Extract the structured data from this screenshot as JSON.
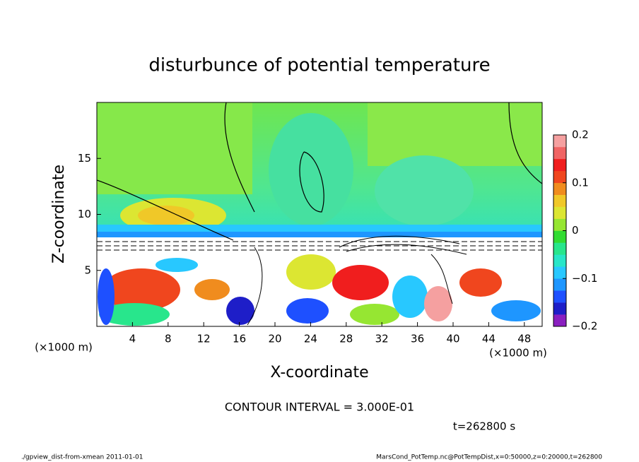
{
  "chart_data": {
    "type": "contour",
    "title": "disturbunce of potential temperature",
    "xlabel": "X-coordinate",
    "ylabel": "Z-coordinate",
    "x_unit": "(×1000 m)",
    "xlim": [
      0,
      50
    ],
    "ylim": [
      0,
      20
    ],
    "xticks": [
      4,
      8,
      12,
      16,
      20,
      24,
      28,
      32,
      36,
      40,
      44,
      48
    ],
    "yticks": [
      5,
      10,
      15
    ],
    "colorbar_lim": [
      -0.2,
      0.2
    ],
    "colorbar_ticks": [
      {
        "value": -0.2,
        "label": "−0.2"
      },
      {
        "value": -0.1,
        "label": "−0.1"
      },
      0,
      0.1,
      0.2
    ],
    "colorbar_colors": [
      "#8a1fc0",
      "#1e1ec8",
      "#1e50ff",
      "#1e96ff",
      "#28c8ff",
      "#28e6c8",
      "#28e68c",
      "#32dc32",
      "#96e632",
      "#dce632",
      "#f0c828",
      "#f08c1e",
      "#f0461e",
      "#f01e1e",
      "#f06464",
      "#f5a0a0"
    ],
    "annotations": [
      "CONTOUR INTERVAL = 3.000E-01",
      "t=262800 s",
      "./gpview_dist-from-xmean  2011-01-01",
      "MarsCond_PotTemp.nc@PotTempDist,x=0:50000,z=0:20000,t=262800"
    ]
  }
}
